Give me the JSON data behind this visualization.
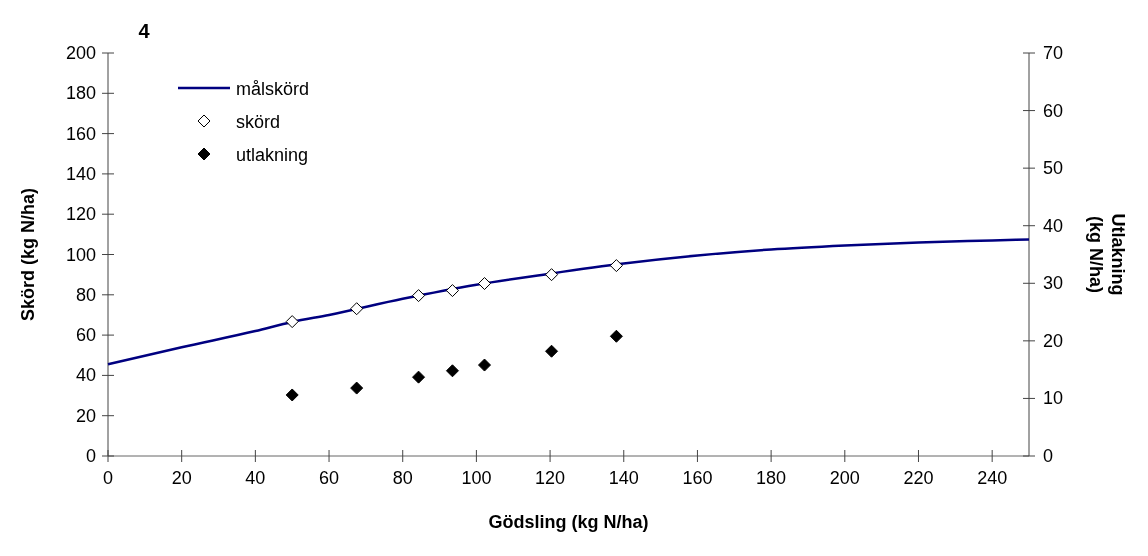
{
  "chart_data": {
    "type": "scatter",
    "title": "4",
    "xlabel": "Gödsling (kg N/ha)",
    "ylabel": "Skörd (kg N/ha)",
    "y2label": "Utlakning\n(kg N/ha)",
    "xlim": [
      0,
      250
    ],
    "xticks": [
      0,
      20,
      40,
      60,
      80,
      100,
      120,
      140,
      160,
      180,
      200,
      220,
      240
    ],
    "ylim": [
      0,
      200
    ],
    "yticks": [
      0,
      20,
      40,
      60,
      80,
      100,
      120,
      140,
      160,
      180,
      200
    ],
    "y2lim": [
      0,
      70
    ],
    "y2ticks": [
      0,
      10,
      20,
      30,
      40,
      50,
      60,
      70
    ],
    "legend": "top left",
    "grid": false,
    "series": [
      {
        "name": "målskörd",
        "type": "line",
        "color": "#000080",
        "marker": "none",
        "x": [
          0,
          20,
          40,
          50,
          60,
          80,
          100,
          120,
          140,
          160,
          180,
          200,
          220,
          240,
          250
        ],
        "values": [
          45.5,
          54,
          62,
          66.5,
          70,
          78,
          85,
          90.5,
          95.5,
          99.5,
          102.5,
          104.5,
          106,
          107,
          107.5
        ]
      },
      {
        "name": "skörd",
        "color": "#ffffff",
        "marker": "diamond",
        "x": [
          50,
          67.5,
          84.3,
          93.5,
          102.2,
          120.4,
          138
        ],
        "values": [
          66.7,
          73.1,
          79.6,
          82.1,
          85.6,
          90,
          94.5
        ]
      },
      {
        "name": "utlakning",
        "axis": "y2",
        "color": "#000000",
        "marker": "diamond",
        "x": [
          50,
          67.5,
          84.3,
          93.5,
          102.2,
          120.4,
          138
        ],
        "values": [
          10.6,
          11.8,
          13.7,
          14.8,
          15.8,
          18.2,
          20.8
        ]
      }
    ]
  }
}
